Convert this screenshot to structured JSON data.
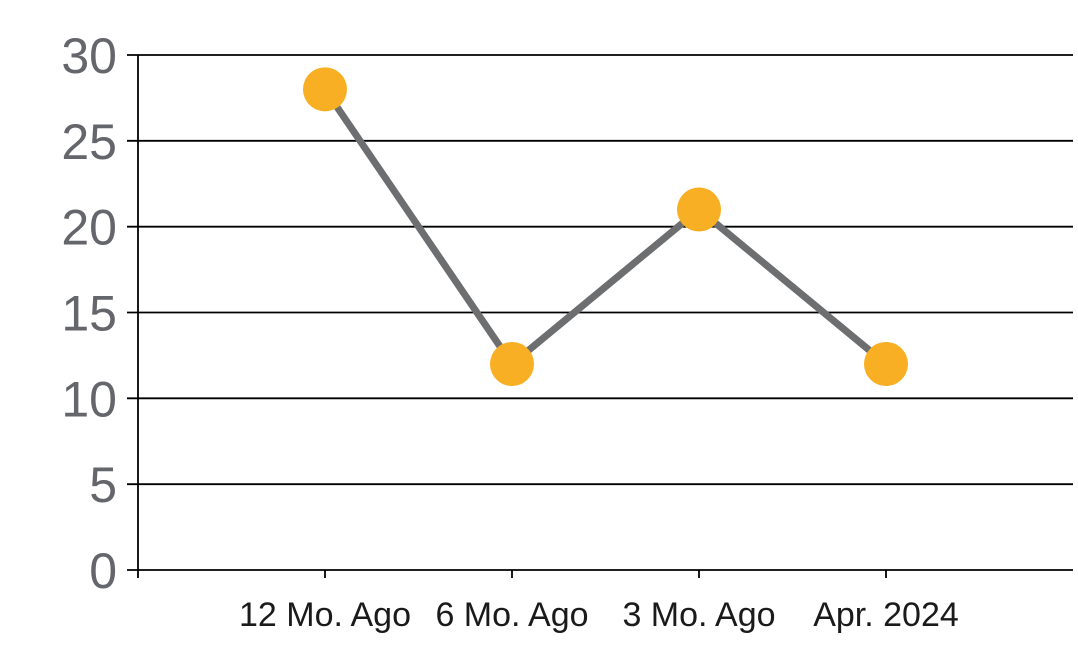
{
  "chart_data": {
    "type": "line",
    "categories": [
      "12 Mo. Ago",
      "6 Mo. Ago",
      "3 Mo. Ago",
      "Apr. 2024"
    ],
    "series": [
      {
        "name": "value",
        "values": [
          28,
          12,
          21,
          12
        ]
      }
    ],
    "title": "",
    "xlabel": "",
    "ylabel": "",
    "ylim": [
      0,
      30
    ],
    "yticks": [
      0,
      5,
      10,
      15,
      20,
      25,
      30
    ],
    "grid": true,
    "legend": false,
    "layout_hints": {
      "marker_radius": 22,
      "line_width": 7,
      "grid_width": 1.8,
      "y_label_font_size": 50,
      "x_label_font_size": 34
    },
    "colors": {
      "background": "#FFFFFF",
      "marker": "#F8AF23",
      "line": "#6D6E70",
      "grid": "#000000",
      "axis": "#000000",
      "y_tick_label": "#64666B",
      "x_tick_label": "#1A1A1A"
    }
  }
}
